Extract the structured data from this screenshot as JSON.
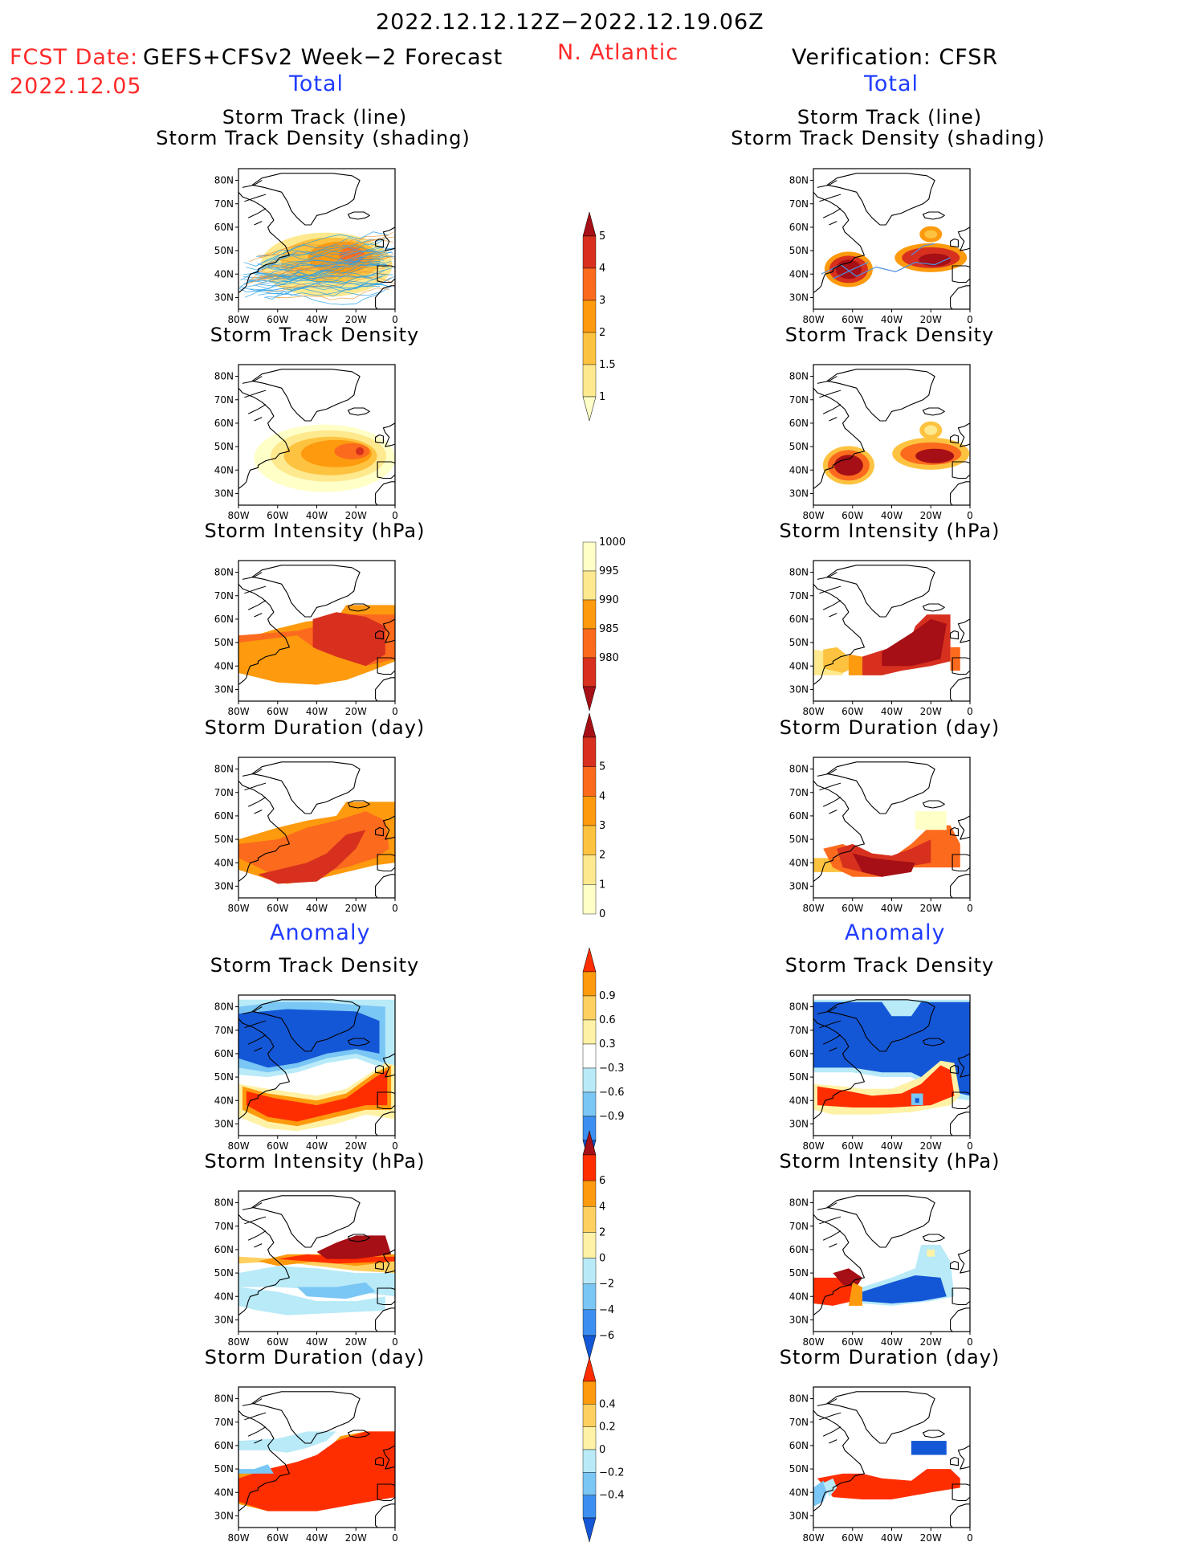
{
  "header": {
    "period": "2022.12.12.12Z−2022.12.19.06Z",
    "region": "N. Atlantic",
    "fcst_label": "FCST Date:",
    "fcst_model": "GEFS+CFSv2 Week−2 Forecast",
    "fcst_date": "2022.12.05",
    "verification": "Verification: CFSR",
    "left_section_total": "Total",
    "right_section_total": "Total",
    "left_section_anomaly": "Anomaly",
    "right_section_anomaly": "Anomaly"
  },
  "panel_titles": {
    "track": [
      "Storm Track (line)",
      "Storm Track Density (shading)"
    ],
    "density": "Storm Track Density",
    "intensity": "Storm Intensity (hPa)",
    "duration": "Storm Duration (day)"
  },
  "axes": {
    "x_ticks": [
      "80W",
      "60W",
      "40W",
      "20W",
      "0"
    ],
    "y_ticks": [
      "80N",
      "70N",
      "60N",
      "50N",
      "40N",
      "30N"
    ]
  },
  "colorbars": [
    {
      "id": "density",
      "labels": [
        "5",
        "4",
        "3",
        "2",
        "1.5",
        "1"
      ],
      "colors": [
        "#a50f15",
        "#d7301f",
        "#fc6a1e",
        "#fd9a0e",
        "#fdc340",
        "#fee98f",
        "#ffffc8"
      ]
    },
    {
      "id": "intensity",
      "labels": [
        "1000",
        "995",
        "990",
        "985",
        "980"
      ],
      "colors": [
        "#ffffc8",
        "#fee98f",
        "#fd9a0e",
        "#fc6a1e",
        "#d7301f",
        "#a50f15"
      ]
    },
    {
      "id": "duration",
      "labels": [
        "5",
        "4",
        "3",
        "2",
        "1",
        "0"
      ],
      "colors": [
        "#a50f15",
        "#d7301f",
        "#fc6a1e",
        "#fd9a0e",
        "#fdc340",
        "#fee98f",
        "#ffffc8"
      ]
    },
    {
      "id": "anom_density",
      "labels": [
        "0.9",
        "0.6",
        "0.3",
        "−0.3",
        "−0.6",
        "−0.9"
      ],
      "colors": [
        "#ff2e00",
        "#fd9a0e",
        "#fdd060",
        "#fff2a6",
        "#ffffff",
        "#b8eaf8",
        "#7ac6f5",
        "#3b8ff0",
        "#1457d6"
      ]
    },
    {
      "id": "anom_intensity",
      "labels": [
        "6",
        "4",
        "2",
        "0",
        "−2",
        "−4",
        "−6"
      ],
      "colors": [
        "#a50f15",
        "#ff2e00",
        "#fd9a0e",
        "#fdd060",
        "#fff2a6",
        "#b8eaf8",
        "#7ac6f5",
        "#3b8ff0",
        "#1457d6"
      ]
    },
    {
      "id": "anom_duration",
      "labels": [
        "0.4",
        "0.2",
        "0",
        "−0.2",
        "−0.4"
      ],
      "colors": [
        "#ff2e00",
        "#fd9a0e",
        "#fdd060",
        "#fff2a6",
        "#b8eaf8",
        "#7ac6f5",
        "#3b8ff0",
        "#1457d6"
      ]
    }
  ],
  "chart_data": [
    {
      "id": "fcst_track",
      "type": "heatmap",
      "title": "Storm Track (line) Storm Track Density (shading)",
      "xlim": [
        -80,
        0
      ],
      "ylim": [
        25,
        85
      ],
      "blobs": [
        {
          "lon": -50,
          "lat": 43,
          "value": 2
        },
        {
          "lon": -30,
          "lat": 47,
          "value": 2
        },
        {
          "lon": -22,
          "lat": 48,
          "value": 3
        }
      ],
      "tracks": "ensemble storm tracks 80W–0, 30N–75N"
    },
    {
      "id": "verif_track",
      "type": "heatmap",
      "title": "Storm Track (line) Storm Track Density (shading)",
      "xlim": [
        -80,
        0
      ],
      "ylim": [
        25,
        85
      ],
      "blobs": [
        {
          "lon": -62,
          "lat": 42,
          "value": 5
        },
        {
          "lon": -20,
          "lat": 46,
          "value": 5
        },
        {
          "lon": -20,
          "lat": 57,
          "value": 3
        }
      ],
      "tracks": "single storm tracks 70W–10W, 40N–50N"
    },
    {
      "id": "fcst_density",
      "type": "heatmap",
      "title": "Storm Track Density",
      "blobs": [
        {
          "lon": -40,
          "lat": 45,
          "value": 2
        },
        {
          "lon": -22,
          "lat": 48,
          "value": 3
        },
        {
          "lon": -18,
          "lat": 48,
          "value": 4
        }
      ]
    },
    {
      "id": "verif_density",
      "type": "heatmap",
      "title": "Storm Track Density",
      "blobs": [
        {
          "lon": -62,
          "lat": 42,
          "value": 5
        },
        {
          "lon": -18,
          "lat": 46,
          "value": 5
        },
        {
          "lon": -20,
          "lat": 57,
          "value": 3
        }
      ]
    },
    {
      "id": "fcst_intensity",
      "type": "heatmap",
      "title": "Storm Intensity (hPa)",
      "range_hPa": [
        980,
        1000
      ]
    },
    {
      "id": "verif_intensity",
      "type": "heatmap",
      "title": "Storm Intensity (hPa)",
      "range_hPa": [
        980,
        1000
      ]
    },
    {
      "id": "fcst_duration",
      "type": "heatmap",
      "title": "Storm Duration (day)",
      "range_day": [
        0,
        5
      ]
    },
    {
      "id": "verif_duration",
      "type": "heatmap",
      "title": "Storm Duration (day)",
      "range_day": [
        0,
        5
      ]
    },
    {
      "id": "fcst_anom_density",
      "type": "heatmap",
      "title": "Storm Track Density",
      "range": [
        -0.9,
        0.9
      ]
    },
    {
      "id": "verif_anom_density",
      "type": "heatmap",
      "title": "Storm Track Density",
      "range": [
        -0.9,
        0.9
      ]
    },
    {
      "id": "fcst_anom_intensity",
      "type": "heatmap",
      "title": "Storm Intensity (hPa)",
      "range": [
        -6,
        6
      ]
    },
    {
      "id": "verif_anom_intensity",
      "type": "heatmap",
      "title": "Storm Intensity (hPa)",
      "range": [
        -6,
        6
      ]
    },
    {
      "id": "fcst_anom_duration",
      "type": "heatmap",
      "title": "Storm Duration (day)",
      "range": [
        -0.4,
        0.4
      ]
    },
    {
      "id": "verif_anom_duration",
      "type": "heatmap",
      "title": "Storm Duration (day)",
      "range": [
        -0.4,
        0.4
      ]
    }
  ]
}
